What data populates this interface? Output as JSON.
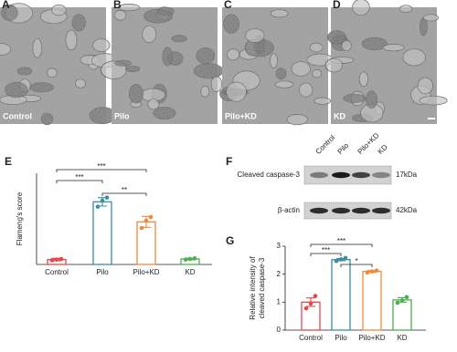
{
  "images": [
    {
      "letter": "A",
      "label": "Control"
    },
    {
      "letter": "B",
      "label": "Pilo"
    },
    {
      "letter": "C",
      "label": "Pilo+KD"
    },
    {
      "letter": "D",
      "label": "KD"
    }
  ],
  "blot": {
    "letter": "F",
    "lanes": [
      "Control",
      "Pilo",
      "Pilo+KD",
      "KD"
    ],
    "rows": [
      {
        "label": "Cleaved caspase-3",
        "size": "17kDa"
      },
      {
        "label": "β-actin",
        "size": "42kDa"
      }
    ]
  },
  "chart_data": [
    {
      "type": "bar",
      "letter": "E",
      "ylabel": [
        "Flameng's score"
      ],
      "categories": [
        "Control",
        "Pilo",
        "Pilo+KD",
        "KD"
      ],
      "colors": [
        "#e8474a",
        "#3a8fa3",
        "#f08a3c",
        "#4caf50"
      ],
      "values": [
        8,
        103,
        70,
        9
      ],
      "errors": [
        2,
        7,
        9,
        1.2
      ],
      "points": [
        [
          7,
          8,
          9
        ],
        [
          95,
          105,
          110
        ],
        [
          60,
          72,
          78
        ],
        [
          8,
          9,
          10
        ]
      ],
      "ylim": [
        0,
        150
      ],
      "annotations": [
        "***",
        "***",
        "**"
      ]
    },
    {
      "type": "bar",
      "letter": "G",
      "ylabel": [
        "Relative intensity of",
        "cleaved caspase-3"
      ],
      "categories": [
        "Control",
        "Pilo",
        "Pilo+KD",
        "KD"
      ],
      "colors": [
        "#e8474a",
        "#3a8fa3",
        "#f08a3c",
        "#4caf50"
      ],
      "values": [
        1.0,
        2.52,
        2.1,
        1.08
      ],
      "errors": [
        0.15,
        0.04,
        0.03,
        0.08
      ],
      "points": [
        [
          0.78,
          0.95,
          1.22
        ],
        [
          2.47,
          2.53,
          2.58
        ],
        [
          2.06,
          2.1,
          2.13
        ],
        [
          0.98,
          1.06,
          1.18
        ]
      ],
      "ylim": [
        0,
        3
      ],
      "yticks": [
        0,
        1,
        2,
        3
      ],
      "annotations": [
        "***",
        "***",
        "*"
      ]
    }
  ]
}
